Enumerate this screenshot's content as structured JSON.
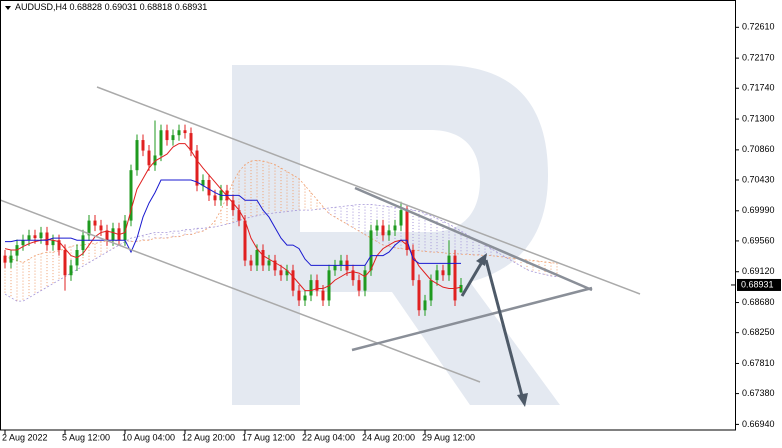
{
  "header": {
    "symbol": "AUDUSD,H4"
  },
  "chart_data": {
    "type": "candlestick",
    "categories": [
      "2 Aug 2022",
      null,
      null,
      null,
      null,
      null,
      null,
      null,
      null,
      null,
      "5 Aug 12:00",
      null,
      null,
      null,
      null,
      null,
      null,
      null,
      null,
      null,
      "10 Aug 04:00",
      null,
      null,
      null,
      null,
      null,
      null,
      null,
      null,
      null,
      "12 Aug 20:00",
      null,
      null,
      null,
      null,
      null,
      null,
      null,
      null,
      null,
      "17 Aug 12:00",
      null,
      null,
      null,
      null,
      null,
      null,
      null,
      null,
      null,
      "22 Aug 04:00",
      null,
      null,
      null,
      null,
      null,
      null,
      null,
      null,
      null,
      "24 Aug 20:00",
      null,
      null,
      null,
      null,
      null,
      null,
      null,
      null,
      null,
      "29 Aug 12:00",
      null,
      null,
      null,
      null,
      null,
      null,
      null,
      null,
      null,
      null,
      null,
      null,
      null,
      null,
      null,
      null,
      null,
      null,
      null,
      null,
      null,
      null
    ],
    "open": [
      0.6935,
      0.6925,
      0.6935,
      0.695,
      0.6957,
      0.6964,
      0.696,
      0.6968,
      0.695,
      0.6957,
      0.6943,
      0.6907,
      0.6921,
      0.6943,
      0.6964,
      0.6985,
      0.6978,
      0.6971,
      0.6957,
      0.6974,
      0.6957,
      0.6985,
      0.7057,
      0.71,
      0.7085,
      0.7064,
      0.7078,
      0.7114,
      0.71,
      0.7107,
      0.7114,
      0.711,
      0.7085,
      0.7035,
      0.7043,
      0.7021,
      0.7014,
      0.7028,
      0.7014,
      0.7,
      0.6985,
      0.6928,
      0.6921,
      0.6943,
      0.6921,
      0.6928,
      0.6914,
      0.6907,
      0.6914,
      0.6885,
      0.6871,
      0.6878,
      0.69,
      0.6885,
      0.6871,
      0.6914,
      0.6921,
      0.6928,
      0.6914,
      0.69,
      0.6885,
      0.6914,
      0.6971,
      0.6978,
      0.6964,
      0.6971,
      0.6978,
      0.7,
      0.6943,
      0.69,
      0.6857,
      0.6871,
      0.69,
      0.6914,
      0.6907,
      0.6935,
      0.68828,
      null,
      null,
      null,
      null,
      null,
      null,
      null,
      null,
      null,
      null,
      null,
      null,
      null,
      null,
      null,
      null
    ],
    "high": [
      0.6943,
      0.6943,
      0.6958,
      0.6965,
      0.6972,
      0.6972,
      0.6976,
      0.6976,
      0.6965,
      0.6965,
      0.6951,
      0.6929,
      0.6951,
      0.6972,
      0.6993,
      0.6993,
      0.6986,
      0.6979,
      0.6982,
      0.6982,
      0.6993,
      0.7065,
      0.7108,
      0.7108,
      0.7093,
      0.7128,
      0.7122,
      0.7122,
      0.7115,
      0.7122,
      0.7122,
      0.7118,
      0.7093,
      0.7051,
      0.7051,
      0.7029,
      0.7036,
      0.7036,
      0.7022,
      0.7008,
      0.6993,
      0.6936,
      0.6951,
      0.6951,
      0.6936,
      0.6936,
      0.6922,
      0.6922,
      0.6922,
      0.6893,
      0.6886,
      0.6908,
      0.6908,
      0.6893,
      0.6922,
      0.6929,
      0.6936,
      0.6936,
      0.6922,
      0.6908,
      0.6922,
      0.6979,
      0.6986,
      0.6986,
      0.6979,
      0.6986,
      0.7012,
      0.7008,
      0.6951,
      0.6908,
      0.6879,
      0.6908,
      0.6922,
      0.6922,
      0.6957,
      0.6943,
      0.69031,
      null,
      null,
      null,
      null,
      null,
      null,
      null,
      null,
      null,
      null,
      null,
      null,
      null,
      null,
      null,
      null
    ],
    "low": [
      0.6917,
      0.6917,
      0.6927,
      0.6942,
      0.6949,
      0.6952,
      0.6952,
      0.6942,
      0.6942,
      0.6935,
      0.6885,
      0.6899,
      0.6913,
      0.6935,
      0.6956,
      0.697,
      0.6963,
      0.6949,
      0.6949,
      0.6949,
      0.6949,
      0.6977,
      0.7049,
      0.7077,
      0.7056,
      0.7056,
      0.707,
      0.7092,
      0.7092,
      0.7099,
      0.7102,
      0.7077,
      0.7027,
      0.7027,
      0.7013,
      0.7006,
      0.7006,
      0.7006,
      0.6992,
      0.6977,
      0.692,
      0.6913,
      0.6913,
      0.6913,
      0.6913,
      0.6906,
      0.6899,
      0.6899,
      0.6877,
      0.6863,
      0.6863,
      0.687,
      0.6877,
      0.6863,
      0.6863,
      0.6906,
      0.6913,
      0.6906,
      0.6892,
      0.6877,
      0.6877,
      0.6906,
      0.6963,
      0.6956,
      0.6956,
      0.6963,
      0.697,
      0.6935,
      0.6892,
      0.6849,
      0.6849,
      0.6863,
      0.6892,
      0.6899,
      0.6899,
      0.6863,
      0.68818,
      null,
      null,
      null,
      null,
      null,
      null,
      null,
      null,
      null,
      null,
      null,
      null,
      null,
      null,
      null,
      null
    ],
    "close": [
      0.6925,
      0.6935,
      0.695,
      0.6957,
      0.6964,
      0.696,
      0.6968,
      0.695,
      0.6957,
      0.6943,
      0.6907,
      0.6921,
      0.6943,
      0.6964,
      0.6985,
      0.6978,
      0.6971,
      0.6957,
      0.6974,
      0.6957,
      0.6985,
      0.7057,
      0.71,
      0.7085,
      0.7064,
      0.7078,
      0.7114,
      0.71,
      0.7107,
      0.7114,
      0.711,
      0.7085,
      0.7035,
      0.7043,
      0.7021,
      0.7014,
      0.7028,
      0.7014,
      0.7,
      0.6985,
      0.6928,
      0.6921,
      0.6943,
      0.6921,
      0.6928,
      0.6914,
      0.6907,
      0.6914,
      0.6885,
      0.6871,
      0.6878,
      0.69,
      0.6885,
      0.6871,
      0.6914,
      0.6921,
      0.6928,
      0.6914,
      0.69,
      0.6885,
      0.6914,
      0.6971,
      0.6978,
      0.6964,
      0.6971,
      0.6978,
      0.7,
      0.6943,
      0.69,
      0.6857,
      0.6871,
      0.69,
      0.6914,
      0.6907,
      0.6935,
      0.6871,
      0.68931,
      null,
      null,
      null,
      null,
      null,
      null,
      null,
      null,
      null,
      null,
      null,
      null,
      null,
      null,
      null,
      null
    ],
    "up_color": "#1f9a1f",
    "down_color": "#e02020",
    "lines": [
      {
        "color": "#e02020",
        "values": [
          0.6945,
          0.6943,
          0.6943,
          0.6948,
          0.6952,
          0.6955,
          0.6957,
          0.6958,
          0.6957,
          0.6955,
          0.6945,
          0.6935,
          0.6932,
          0.6938,
          0.695,
          0.6962,
          0.6968,
          0.697,
          0.6968,
          0.6965,
          0.6968,
          0.7,
          0.703,
          0.7045,
          0.706,
          0.707,
          0.7075,
          0.708,
          0.709,
          0.7095,
          0.7095,
          0.7085,
          0.7071,
          0.706,
          0.705,
          0.704,
          0.703,
          0.702,
          0.701,
          0.7,
          0.6985,
          0.696,
          0.6945,
          0.6935,
          0.693,
          0.6925,
          0.692,
          0.6914,
          0.6905,
          0.6895,
          0.6885,
          0.6885,
          0.6888,
          0.6888,
          0.6892,
          0.69,
          0.6905,
          0.691,
          0.6912,
          0.691,
          0.6905,
          0.6915,
          0.6935,
          0.6945,
          0.695,
          0.6955,
          0.6957,
          0.695,
          0.6935,
          0.692,
          0.691,
          0.69,
          0.6895,
          0.689,
          0.6888,
          0.6888,
          0.689,
          null,
          null,
          null,
          null,
          null,
          null,
          null,
          null,
          null,
          null,
          null,
          null,
          null,
          null,
          null,
          null
        ]
      },
      {
        "color": "#1a1ad0",
        "values": [
          0.6955,
          0.6955,
          0.6957,
          0.6957,
          0.6957,
          0.6957,
          0.6957,
          0.6957,
          0.696,
          0.696,
          0.696,
          0.696,
          0.6957,
          0.6957,
          0.6957,
          0.6957,
          0.6957,
          0.6957,
          0.6957,
          0.6957,
          0.6957,
          0.694,
          0.696,
          0.699,
          0.701,
          0.7025,
          0.7043,
          0.7043,
          0.7043,
          0.7043,
          0.7043,
          0.7043,
          0.704,
          0.7035,
          0.703,
          0.7025,
          0.7021,
          0.7021,
          0.7021,
          0.7021,
          0.7014,
          0.7014,
          0.7014,
          0.7,
          0.699,
          0.6975,
          0.696,
          0.695,
          0.695,
          0.6945,
          0.693,
          0.6921,
          0.6921,
          0.6921,
          0.6921,
          0.6921,
          0.6921,
          0.6921,
          0.6921,
          0.6921,
          0.6921,
          0.6935,
          0.6935,
          0.6935,
          0.694,
          0.695,
          0.6957,
          0.6957,
          0.693,
          0.6924,
          0.6924,
          0.6924,
          0.6924,
          0.6924,
          0.6924,
          0.6924,
          0.6924,
          null,
          null,
          null,
          null,
          null,
          null,
          null,
          null,
          null,
          null,
          null,
          null,
          null,
          null,
          null,
          null
        ]
      }
    ],
    "cloud": {
      "up_color": "#f0a070",
      "down_color": "#a596d8",
      "span_a": [
        0.6935,
        0.693,
        0.6928,
        0.6925,
        0.693,
        0.6935,
        0.6938,
        0.694,
        0.694,
        0.6942,
        0.6945,
        0.6948,
        0.695,
        0.695,
        0.6952,
        0.6952,
        0.6955,
        0.6955,
        0.6955,
        0.6957,
        0.6957,
        0.6955,
        0.6955,
        0.6957,
        0.6957,
        0.696,
        0.696,
        0.696,
        0.6962,
        0.6962,
        0.6965,
        0.6965,
        0.6968,
        0.697,
        0.6975,
        0.6985,
        0.7,
        0.702,
        0.704,
        0.7055,
        0.7065,
        0.707,
        0.7071,
        0.707,
        0.7068,
        0.7065,
        0.706,
        0.7055,
        0.705,
        0.7045,
        0.7035,
        0.7025,
        0.7015,
        0.7005,
        0.6995,
        0.699,
        0.6985,
        0.698,
        0.6975,
        0.697,
        0.6965,
        0.696,
        0.6955,
        0.695,
        0.6948,
        0.6946,
        0.6945,
        0.6944,
        0.6943,
        0.6942,
        0.6941,
        0.694,
        0.694,
        0.6939,
        0.6938,
        0.6938,
        0.6937,
        0.6937,
        0.6936,
        0.6936,
        0.6935,
        0.6935,
        0.6934,
        0.6933,
        0.6932,
        0.6931,
        0.693,
        0.6929,
        0.6928,
        0.6927,
        0.6926,
        0.6925,
        0.6924
      ],
      "span_b": [
        0.688,
        0.6875,
        0.687,
        0.687,
        0.6875,
        0.688,
        0.6885,
        0.689,
        0.6895,
        0.69,
        0.6905,
        0.691,
        0.6915,
        0.692,
        0.6925,
        0.693,
        0.6935,
        0.694,
        0.6945,
        0.695,
        0.6955,
        0.696,
        0.6962,
        0.6964,
        0.6966,
        0.6968,
        0.6968,
        0.6968,
        0.697,
        0.697,
        0.6972,
        0.6972,
        0.6974,
        0.6974,
        0.6975,
        0.6976,
        0.6978,
        0.698,
        0.6982,
        0.6985,
        0.6988,
        0.699,
        0.6992,
        0.6994,
        0.6995,
        0.6996,
        0.6997,
        0.6998,
        0.6999,
        0.7,
        0.7,
        0.7,
        0.7001,
        0.7002,
        0.7003,
        0.7004,
        0.7005,
        0.7006,
        0.7007,
        0.7008,
        0.7008,
        0.7008,
        0.7007,
        0.7006,
        0.7005,
        0.7004,
        0.7003,
        0.7002,
        0.7,
        0.6998,
        0.6995,
        0.6992,
        0.6988,
        0.6984,
        0.698,
        0.6975,
        0.697,
        0.6965,
        0.696,
        0.6955,
        0.695,
        0.6945,
        0.694,
        0.6935,
        0.693,
        0.6925,
        0.692,
        0.6915,
        0.6912,
        0.691,
        0.6908,
        0.6906,
        0.6905
      ]
    },
    "ylim": [
      0.6686,
      0.73
    ],
    "yticks": [
      {
        "value": 0.7261,
        "label": "0.72610"
      },
      {
        "value": 0.7217,
        "label": "0.72170"
      },
      {
        "value": 0.7174,
        "label": "0.71740"
      },
      {
        "value": 0.713,
        "label": "0.71300"
      },
      {
        "value": 0.7086,
        "label": "0.70860"
      },
      {
        "value": 0.7043,
        "label": "0.70430"
      },
      {
        "value": 0.6999,
        "label": "0.69990"
      },
      {
        "value": 0.6956,
        "label": "0.69560"
      },
      {
        "value": 0.6912,
        "label": "0.69120"
      },
      {
        "value": 0.6868,
        "label": "0.68680"
      },
      {
        "value": 0.6825,
        "label": "0.68250"
      },
      {
        "value": 0.6781,
        "label": "0.67810"
      },
      {
        "value": 0.6738,
        "label": "0.67380"
      },
      {
        "value": 0.6694,
        "label": "0.66940"
      }
    ]
  }
}
